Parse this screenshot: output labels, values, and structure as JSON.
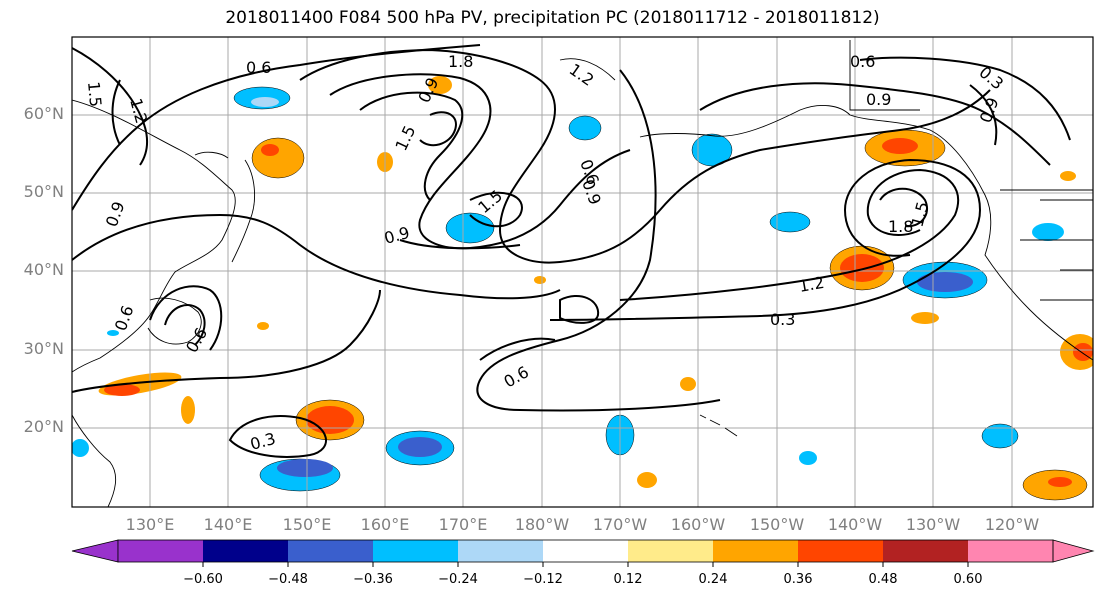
{
  "title": "2018011400 F084 500 hPa PV, precipitation PC (2018011712 - 2018011812)",
  "lat_labels": [
    "60°N",
    "50°N",
    "40°N",
    "30°N",
    "20°N"
  ],
  "lon_labels": [
    "130°E",
    "140°E",
    "150°E",
    "160°E",
    "170°E",
    "180°W",
    "170°W",
    "160°W",
    "150°W",
    "140°W",
    "130°W",
    "120°W"
  ],
  "contour_labels": [
    "0.6",
    "1.8",
    "1.2",
    "1.5",
    "1.2",
    "0.9",
    "0.9",
    "1.5",
    "0.9",
    "0.6",
    "0.3",
    "0.6",
    "0.9",
    "1.5",
    "1.8",
    "1.5",
    "1.2",
    "0.3",
    "0.6",
    "0.9",
    "0.6",
    "0.3",
    "0.9",
    "0.6"
  ],
  "colorbar": {
    "ticks": [
      "−0.60",
      "−0.48",
      "−0.36",
      "−0.24",
      "−0.12",
      "0.12",
      "0.24",
      "0.36",
      "0.48",
      "0.60"
    ],
    "colors": [
      "#9932cc",
      "#00008b",
      "#3a5fcd",
      "#00bfff",
      "#add8f7",
      "#ffffff",
      "#ffeb8a",
      "#ffa500",
      "#ff4500",
      "#b22222",
      "#ff85b0"
    ]
  }
}
